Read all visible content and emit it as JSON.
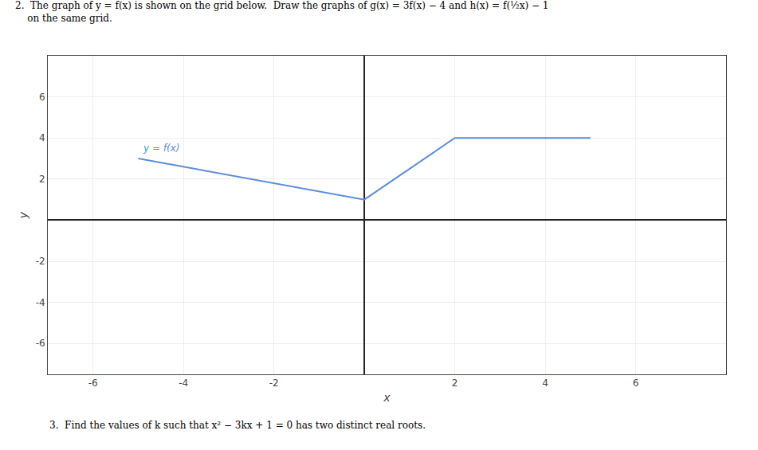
{
  "chart_data": {
    "type": "line",
    "title": "2.  The graph of y = f(x) is shown on the grid below.  Draw the graphs of g(x) = 3f(x) − 4 and h(x) = f(½x) − 1",
    "subtitle": "    on the same grid.",
    "annotations": [
      "3.  Find the values of k such that x² − 3kx + 1 = 0 has two distinct real roots."
    ],
    "xlabel": "x",
    "ylabel": "y",
    "x": [
      -5,
      0,
      2,
      5
    ],
    "series": [
      {
        "name": "y = f(x)",
        "color": "#5b8dd9",
        "values": [
          3,
          1,
          4,
          4
        ]
      }
    ],
    "xlim": [
      -7,
      8
    ],
    "ylim": [
      -7.5,
      8
    ],
    "xticks": [
      -6,
      -4,
      -2,
      2,
      4,
      6
    ],
    "yticks": [
      -6,
      -4,
      -2,
      2,
      4,
      6
    ],
    "grid": true
  }
}
